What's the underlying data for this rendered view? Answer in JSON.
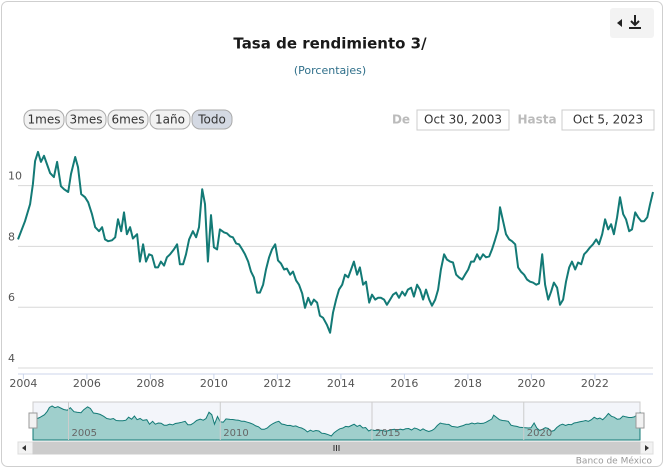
{
  "chart_data": {
    "type": "line",
    "title": "Tasa de rendimiento 3/",
    "subtitle": "(Porcentajes)",
    "color": "#137a76",
    "x": [
      2003.83,
      2004.05,
      2004.21,
      2004.3,
      2004.37,
      2004.46,
      2004.55,
      2004.65,
      2004.74,
      2004.84,
      2004.96,
      2005.06,
      2005.18,
      2005.28,
      2005.41,
      2005.5,
      2005.63,
      2005.72,
      2005.82,
      2005.94,
      2006.04,
      2006.16,
      2006.26,
      2006.38,
      2006.48,
      2006.57,
      2006.67,
      2006.79,
      2006.89,
      2006.98,
      2007.08,
      2007.17,
      2007.26,
      2007.36,
      2007.45,
      2007.58,
      2007.67,
      2007.77,
      2007.86,
      2007.96,
      2008.05,
      2008.15,
      2008.24,
      2008.33,
      2008.43,
      2008.52,
      2008.62,
      2008.74,
      2008.84,
      2008.93,
      2009.03,
      2009.12,
      2009.22,
      2009.34,
      2009.44,
      2009.53,
      2009.63,
      2009.72,
      2009.81,
      2009.91,
      2010.0,
      2010.1,
      2010.19,
      2010.32,
      2010.41,
      2010.51,
      2010.6,
      2010.7,
      2010.79,
      2010.89,
      2010.98,
      2011.08,
      2011.17,
      2011.26,
      2011.36,
      2011.45,
      2011.55,
      2011.64,
      2011.74,
      2011.83,
      2011.93,
      2012.02,
      2012.11,
      2012.21,
      2012.3,
      2012.4,
      2012.49,
      2012.59,
      2012.68,
      2012.78,
      2012.87,
      2012.97,
      2013.06,
      2013.15,
      2013.25,
      2013.34,
      2013.44,
      2013.56,
      2013.66,
      2013.75,
      2013.85,
      2013.94,
      2014.04,
      2014.13,
      2014.23,
      2014.32,
      2014.41,
      2014.51,
      2014.6,
      2014.7,
      2014.79,
      2014.89,
      2014.98,
      2015.08,
      2015.17,
      2015.26,
      2015.36,
      2015.45,
      2015.55,
      2015.64,
      2015.74,
      2015.83,
      2015.93,
      2016.02,
      2016.11,
      2016.21,
      2016.3,
      2016.4,
      2016.49,
      2016.59,
      2016.68,
      2016.78,
      2016.87,
      2016.97,
      2017.06,
      2017.15,
      2017.25,
      2017.34,
      2017.44,
      2017.53,
      2017.63,
      2017.72,
      2017.82,
      2017.91,
      2018.01,
      2018.1,
      2018.19,
      2018.29,
      2018.38,
      2018.48,
      2018.57,
      2018.67,
      2018.76,
      2018.86,
      2018.95,
      2019.01,
      2019.11,
      2019.2,
      2019.3,
      2019.39,
      2019.49,
      2019.58,
      2019.67,
      2019.77,
      2019.86,
      2019.96,
      2020.05,
      2020.15,
      2020.24,
      2020.34,
      2020.43,
      2020.53,
      2020.62,
      2020.71,
      2020.81,
      2020.9,
      2021.0,
      2021.09,
      2021.19,
      2021.28,
      2021.38,
      2021.47,
      2021.57,
      2021.66,
      2021.75,
      2021.85,
      2021.94,
      2022.04,
      2022.13,
      2022.23,
      2022.32,
      2022.42,
      2022.51,
      2022.6,
      2022.7,
      2022.79,
      2022.89,
      2022.98,
      2023.08,
      2023.17,
      2023.27,
      2023.36,
      2023.46,
      2023.55,
      2023.65,
      2023.74,
      2023.83
    ],
    "values": [
      8.23,
      8.83,
      9.39,
      10.05,
      10.81,
      11.11,
      10.78,
      10.98,
      10.71,
      10.41,
      10.28,
      10.78,
      9.98,
      9.88,
      9.79,
      10.38,
      10.94,
      10.61,
      9.72,
      9.62,
      9.45,
      9.06,
      8.63,
      8.5,
      8.63,
      8.23,
      8.17,
      8.2,
      8.3,
      8.89,
      8.5,
      9.12,
      8.4,
      8.63,
      8.26,
      8.4,
      7.5,
      8.07,
      7.5,
      7.74,
      7.7,
      7.31,
      7.31,
      7.5,
      7.37,
      7.64,
      7.74,
      7.9,
      8.07,
      7.41,
      7.41,
      7.74,
      8.23,
      8.5,
      8.3,
      8.63,
      9.88,
      9.39,
      7.5,
      9.03,
      7.97,
      7.9,
      8.56,
      8.46,
      8.43,
      8.33,
      8.3,
      8.1,
      8.07,
      7.9,
      7.74,
      7.5,
      7.17,
      6.98,
      6.48,
      6.48,
      6.74,
      7.24,
      7.64,
      7.9,
      8.07,
      7.54,
      7.44,
      7.24,
      7.27,
      7.07,
      7.17,
      6.88,
      6.74,
      6.45,
      5.98,
      6.31,
      6.08,
      6.25,
      6.15,
      5.72,
      5.65,
      5.42,
      5.16,
      5.82,
      6.25,
      6.58,
      6.74,
      7.07,
      6.98,
      7.24,
      7.5,
      7.07,
      7.31,
      6.74,
      6.84,
      6.15,
      6.41,
      6.25,
      6.31,
      6.31,
      6.25,
      6.08,
      6.25,
      6.41,
      6.48,
      6.31,
      6.51,
      6.38,
      6.58,
      6.64,
      6.35,
      6.74,
      6.58,
      6.25,
      6.58,
      6.25,
      6.05,
      6.25,
      6.58,
      7.24,
      7.74,
      7.57,
      7.5,
      7.47,
      7.07,
      6.98,
      6.91,
      7.07,
      7.24,
      7.5,
      7.5,
      7.74,
      7.57,
      7.74,
      7.64,
      7.67,
      7.9,
      8.23,
      8.56,
      9.29,
      8.83,
      8.4,
      8.23,
      8.17,
      8.07,
      7.31,
      7.17,
      7.07,
      6.91,
      6.84,
      6.81,
      6.74,
      6.78,
      7.74,
      6.74,
      6.25,
      6.51,
      6.81,
      6.64,
      6.08,
      6.25,
      6.84,
      7.31,
      7.5,
      7.24,
      7.47,
      7.41,
      7.74,
      7.84,
      7.97,
      8.07,
      8.23,
      8.07,
      8.4,
      8.89,
      8.56,
      8.73,
      8.4,
      8.96,
      9.62,
      9.06,
      8.89,
      8.5,
      8.56,
      9.12,
      8.96,
      8.83,
      8.83,
      8.96,
      9.39,
      9.79
    ],
    "xlim": [
      2003.83,
      2023.83
    ],
    "xticks": [
      2004,
      2006,
      2008,
      2010,
      2012,
      2014,
      2016,
      2018,
      2020,
      2022
    ],
    "ylim": [
      4,
      11.5
    ],
    "yticks": [
      4,
      6,
      8,
      10
    ],
    "grid": true,
    "navigator_xticks": [
      2005,
      2010,
      2015,
      2020
    ],
    "range_buttons": [
      "1mes",
      "3mes",
      "6mes",
      "1año",
      "Todo"
    ],
    "selected_button": 4,
    "from_label": "De",
    "from": "Oct 30, 2003",
    "to_label": "Hasta",
    "to": "Oct 5, 2023",
    "credits": "Banco de México"
  }
}
